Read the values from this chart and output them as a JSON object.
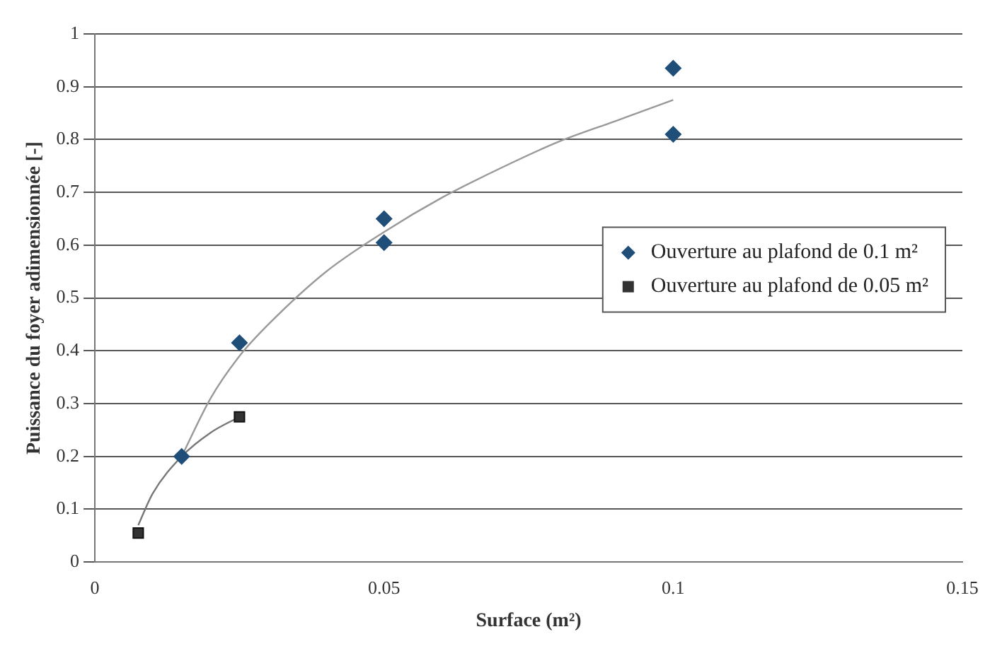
{
  "chart_data": {
    "type": "scatter",
    "xlabel": "Surface (m²)",
    "ylabel": "Puissance du foyer adimensionnée [-]",
    "xlim": [
      0,
      0.15
    ],
    "xticks": [
      0,
      0.05,
      0.1,
      0.15
    ],
    "ylim": [
      0,
      1
    ],
    "yticks": [
      0,
      0.1,
      0.2,
      0.3,
      0.4,
      0.5,
      0.6,
      0.7,
      0.8,
      0.9,
      1
    ],
    "grid": "y",
    "legend": "right",
    "series": [
      {
        "name": "Ouverture au plafond de 0.1 m²",
        "color": "#1f4e79",
        "marker": "diamond",
        "x": [
          0.015,
          0.025,
          0.05,
          0.05,
          0.1,
          0.1
        ],
        "values": [
          0.2,
          0.415,
          0.65,
          0.605,
          0.935,
          0.81
        ]
      },
      {
        "name": "Ouverture au plafond de 0.05 m²",
        "color": "#333333",
        "marker": "square",
        "x": [
          0.0075,
          0.025
        ],
        "values": [
          0.055,
          0.275
        ]
      },
      {
        "type": "line",
        "color": "#999999",
        "marker": "none",
        "x": [
          0.015,
          0.02,
          0.025,
          0.03,
          0.04,
          0.05,
          0.06,
          0.07,
          0.08,
          0.09,
          0.1
        ],
        "values": [
          0.2,
          0.31,
          0.39,
          0.45,
          0.55,
          0.625,
          0.69,
          0.745,
          0.795,
          0.835,
          0.875
        ]
      },
      {
        "type": "line",
        "color": "#777777",
        "marker": "none",
        "x": [
          0.0075,
          0.01,
          0.015,
          0.02,
          0.025
        ],
        "values": [
          0.07,
          0.13,
          0.2,
          0.245,
          0.275
        ]
      }
    ]
  }
}
